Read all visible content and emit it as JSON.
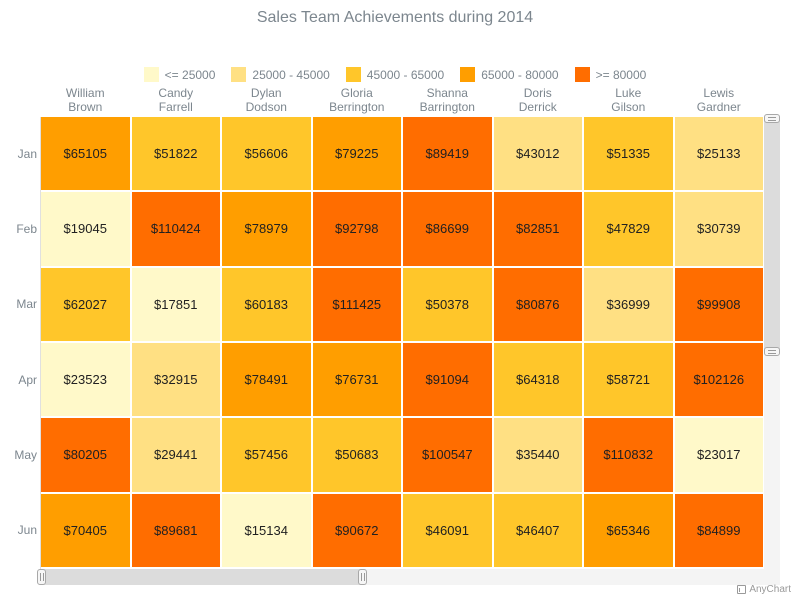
{
  "chart_data": {
    "type": "heatmap",
    "title": "Sales Team Achievements during 2014",
    "columns": [
      [
        "William",
        "Brown"
      ],
      [
        "Candy",
        "Farrell"
      ],
      [
        "Dylan",
        "Dodson"
      ],
      [
        "Gloria",
        "Berrington"
      ],
      [
        "Shanna",
        "Barrington"
      ],
      [
        "Doris",
        "Derrick"
      ],
      [
        "Luke",
        "Gilson"
      ],
      [
        "Lewis",
        "Gardner"
      ]
    ],
    "rows": [
      "Jan",
      "Feb",
      "Mar",
      "Apr",
      "May",
      "Jun"
    ],
    "values": [
      [
        65105,
        51822,
        56606,
        79225,
        89419,
        43012,
        51335,
        25133
      ],
      [
        19045,
        110424,
        78979,
        92798,
        86699,
        82851,
        47829,
        30739
      ],
      [
        62027,
        17851,
        60183,
        111425,
        50378,
        80876,
        36999,
        99908
      ],
      [
        23523,
        32915,
        78491,
        76731,
        91094,
        64318,
        58721,
        102126
      ],
      [
        80205,
        29441,
        57456,
        50683,
        100547,
        35440,
        110832,
        23017
      ],
      [
        70405,
        89681,
        15134,
        90672,
        46091,
        46407,
        65346,
        84899
      ]
    ],
    "value_prefix": "$",
    "legend": {
      "position": "top",
      "ranges": [
        {
          "label": "<= 25000",
          "min": null,
          "max": 25000,
          "color": "#fff9c9"
        },
        {
          "label": "25000 - 45000",
          "min": 25000,
          "max": 45000,
          "color": "#ffe083"
        },
        {
          "label": "45000 - 65000",
          "min": 45000,
          "max": 65000,
          "color": "#ffc62a"
        },
        {
          "label": "65000 - 80000",
          "min": 65000,
          "max": 80000,
          "color": "#ff9e00"
        },
        {
          "label": ">= 80000",
          "min": 80000,
          "max": null,
          "color": "#ff6d00"
        }
      ]
    }
  },
  "credit": "AnyChart"
}
